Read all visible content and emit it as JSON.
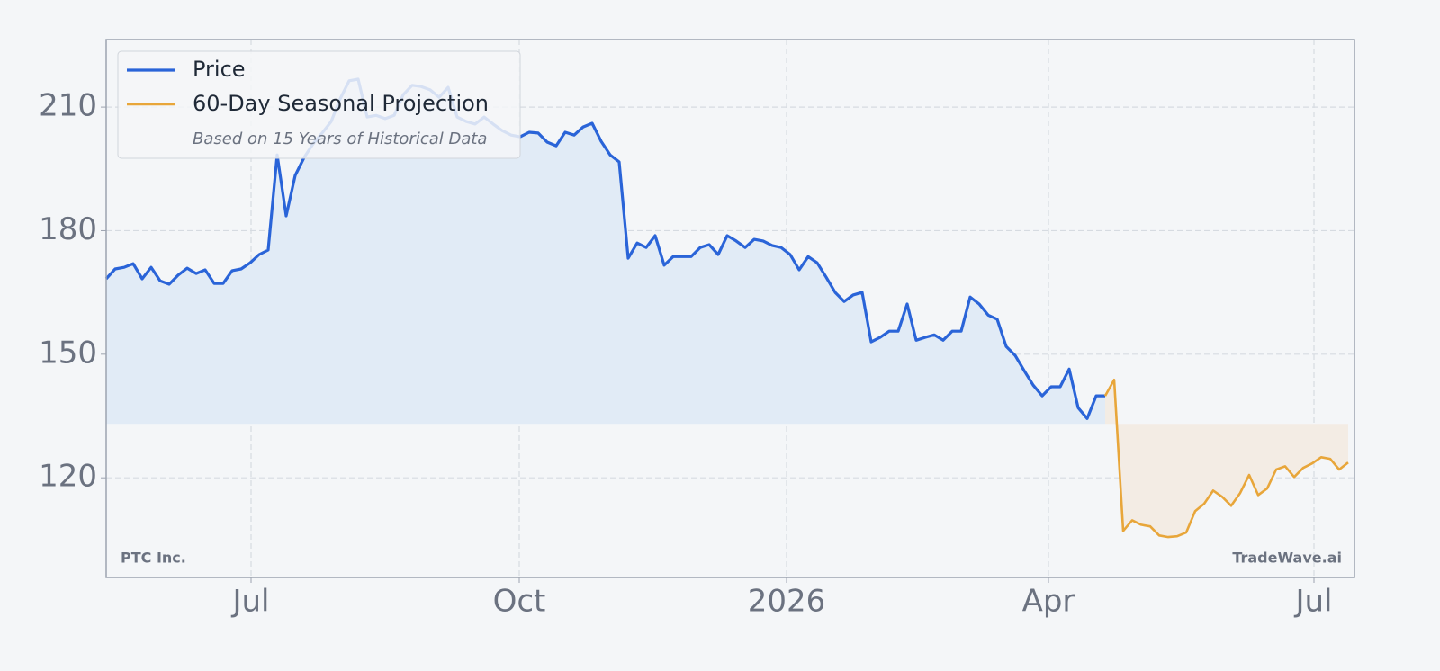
{
  "chart_data": {
    "type": "line",
    "xlim": [
      0,
      138.7
    ],
    "xticks": [
      {
        "value": 16.1,
        "label": "Jul"
      },
      {
        "value": 45.9,
        "label": "Oct"
      },
      {
        "value": 75.6,
        "label": "2026"
      },
      {
        "value": 104.7,
        "label": "Apr"
      },
      {
        "value": 134.2,
        "label": "Jul"
      }
    ],
    "ylim": [
      95.8,
      226.4
    ],
    "yticks": [
      120,
      150,
      180,
      210
    ],
    "grid": true,
    "legend": "upper left",
    "legend_note": "Based on 15 Years of Historical Data",
    "area_baseline": 133.1,
    "annotations": [
      "PTC Inc.",
      "TradeWave.ai"
    ],
    "series": [
      {
        "name": "Price",
        "color": "#2a64d8",
        "fill": "#e1ebf6",
        "values": [
          168.3,
          170.7,
          171.1,
          172,
          168.3,
          171.1,
          167.8,
          167,
          169.2,
          170.9,
          169.6,
          170.5,
          167.2,
          167.2,
          170.3,
          170.7,
          172.2,
          174.2,
          175.3,
          198.4,
          183.6,
          193.4,
          197.8,
          201.1,
          203.7,
          206.5,
          212,
          216.4,
          216.8,
          207.6,
          208,
          207.2,
          208,
          213,
          215.3,
          215,
          214.2,
          212.4,
          214.8,
          207.6,
          206.5,
          205.9,
          207.6,
          205.9,
          204.3,
          203.2,
          202.8,
          203.9,
          203.7,
          201.5,
          200.6,
          203.9,
          203.2,
          205.2,
          206.1,
          201.7,
          198.4,
          196.7,
          173.3,
          177,
          175.9,
          178.8,
          171.6,
          173.7,
          173.7,
          173.7,
          175.9,
          176.6,
          174.2,
          178.8,
          177.5,
          175.9,
          177.9,
          177.5,
          176.4,
          175.9,
          174.2,
          170.5,
          173.7,
          172.2,
          168.7,
          165,
          162.8,
          164.4,
          165,
          153,
          154.1,
          155.6,
          155.6,
          162.2,
          153.4,
          154.1,
          154.7,
          153.4,
          155.6,
          155.6,
          163.9,
          162.2,
          159.5,
          158.5,
          151.9,
          149.7,
          146,
          142.5,
          139.9,
          142.1,
          142.1,
          146.4,
          137,
          134.4,
          139.9,
          139.9,
          null,
          null,
          null,
          null,
          null,
          null,
          null,
          null,
          null,
          null,
          null,
          null,
          null,
          null,
          null,
          null,
          null,
          null,
          null,
          null,
          null,
          null,
          null,
          null,
          null,
          null,
          null
        ]
      },
      {
        "name": "60-Day Seasonal Projection",
        "color": "#e8a63a",
        "fill": "#f3ece4",
        "values": [
          null,
          null,
          null,
          null,
          null,
          null,
          null,
          null,
          null,
          null,
          null,
          null,
          null,
          null,
          null,
          null,
          null,
          null,
          null,
          null,
          null,
          null,
          null,
          null,
          null,
          null,
          null,
          null,
          null,
          null,
          null,
          null,
          null,
          null,
          null,
          null,
          null,
          null,
          null,
          null,
          null,
          null,
          null,
          null,
          null,
          null,
          null,
          null,
          null,
          null,
          null,
          null,
          null,
          null,
          null,
          null,
          null,
          null,
          null,
          null,
          null,
          null,
          null,
          null,
          null,
          null,
          null,
          null,
          null,
          null,
          null,
          null,
          null,
          null,
          null,
          null,
          null,
          null,
          null,
          null,
          null,
          null,
          null,
          null,
          null,
          null,
          null,
          null,
          null,
          null,
          null,
          null,
          null,
          null,
          null,
          null,
          null,
          null,
          null,
          null,
          null,
          null,
          null,
          null,
          null,
          null,
          null,
          null,
          null,
          null,
          null,
          139.9,
          143.8,
          107.1,
          109.7,
          108.6,
          108.2,
          106,
          105.6,
          105.8,
          106.7,
          111.9,
          113.7,
          116.9,
          115.4,
          113.2,
          116.3,
          120.7,
          115.8,
          117.4,
          122,
          122.8,
          120.2,
          122.4,
          123.5,
          125,
          124.6,
          122,
          123.7
        ]
      }
    ]
  }
}
